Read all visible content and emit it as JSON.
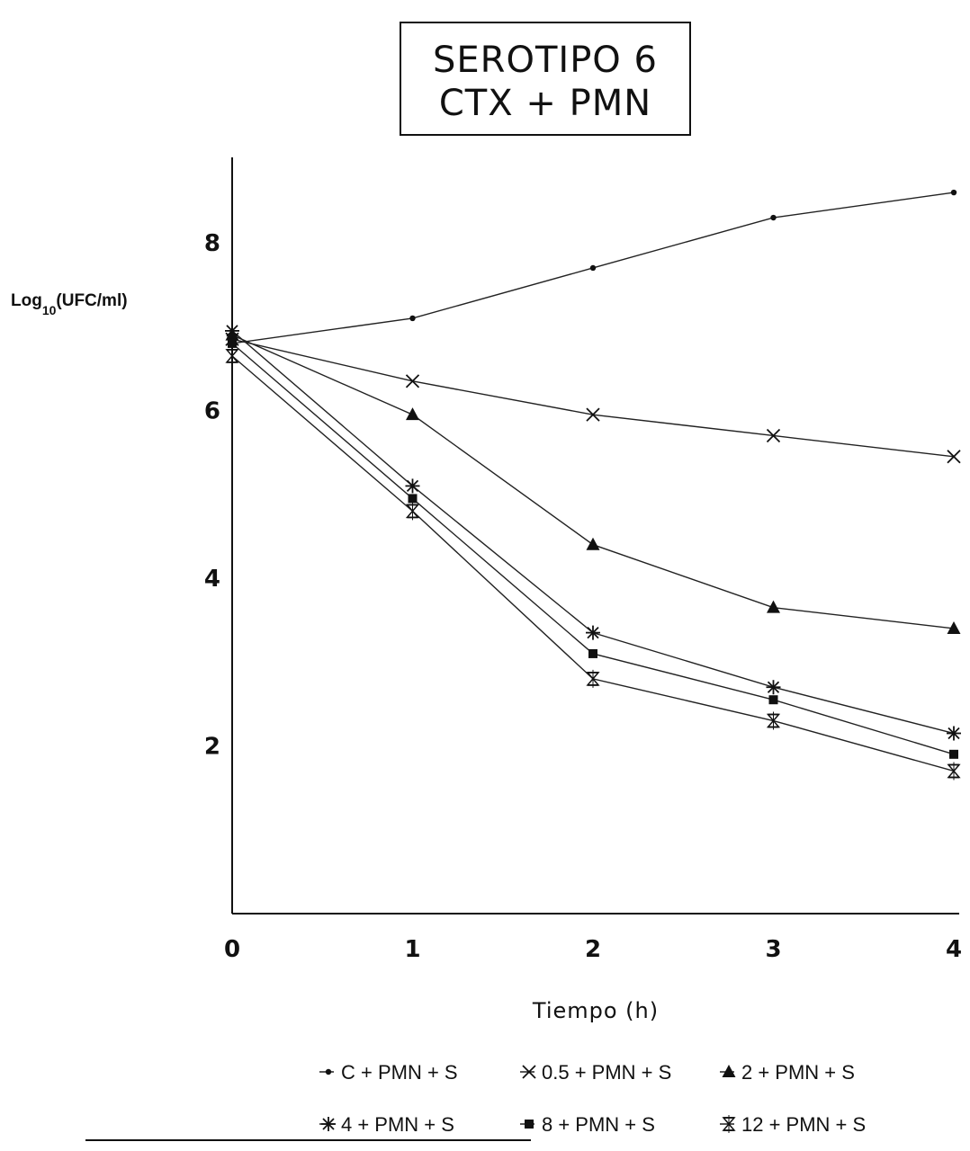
{
  "chart_data": {
    "type": "line",
    "title_lines": [
      "SEROTIPO 6",
      "CTX + PMN"
    ],
    "xlabel": "Tiempo (h)",
    "ylabel_main": "Log",
    "ylabel_sub": "10",
    "ylabel_unit": "(UFC/ml)",
    "x": [
      0,
      1,
      2,
      3,
      4
    ],
    "x_ticks": [
      "0",
      "1",
      "2",
      "3",
      "4"
    ],
    "y_ticks": [
      2,
      4,
      6,
      8
    ],
    "y_tick_labels": [
      "2",
      "4",
      "6",
      "8"
    ],
    "xlim": [
      0,
      4
    ],
    "ylim": [
      0,
      9
    ],
    "grid": false,
    "legend_position": "bottom",
    "series": [
      {
        "name": "C + PMN + S",
        "marker": "dot",
        "values": [
          6.8,
          7.1,
          7.7,
          8.3,
          8.6
        ]
      },
      {
        "name": "0.5 + PMN + S",
        "marker": "x",
        "values": [
          6.85,
          6.35,
          5.95,
          5.7,
          5.45
        ]
      },
      {
        "name": "2 + PMN + S",
        "marker": "triangle",
        "values": [
          6.9,
          5.95,
          4.4,
          3.65,
          3.4
        ]
      },
      {
        "name": "4 + PMN + S",
        "marker": "asterisk",
        "values": [
          6.95,
          5.1,
          3.35,
          2.7,
          2.15
        ]
      },
      {
        "name": "8 + PMN + S",
        "marker": "square",
        "values": [
          6.8,
          4.95,
          3.1,
          2.55,
          1.9
        ]
      },
      {
        "name": "12 + PMN + S",
        "marker": "hourglass",
        "values": [
          6.65,
          4.8,
          2.8,
          2.3,
          1.7
        ]
      }
    ]
  }
}
